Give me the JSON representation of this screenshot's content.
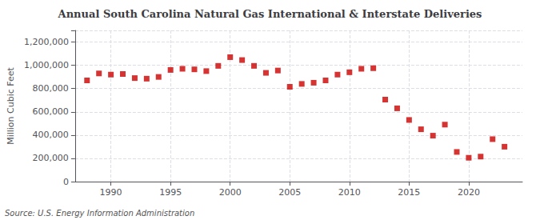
{
  "chart_data": {
    "type": "scatter",
    "title": "Annual South Carolina Natural Gas International & Interstate Deliveries",
    "ylabel": "Million Cubic Feet",
    "annotations": [
      "Source: U.S. Energy Information Administration"
    ],
    "x": [
      1988,
      1989,
      1990,
      1991,
      1992,
      1993,
      1994,
      1995,
      1996,
      1997,
      1998,
      1999,
      2000,
      2001,
      2002,
      2003,
      2004,
      2005,
      2006,
      2007,
      2008,
      2009,
      2010,
      2011,
      2012,
      2013,
      2014,
      2015,
      2016,
      2017,
      2018,
      2019,
      2020,
      2021,
      2022,
      2023
    ],
    "values": [
      870000,
      930000,
      920000,
      925000,
      890000,
      885000,
      900000,
      960000,
      970000,
      965000,
      950000,
      995000,
      1070000,
      1045000,
      995000,
      935000,
      955000,
      815000,
      840000,
      850000,
      870000,
      920000,
      940000,
      970000,
      975000,
      705000,
      630000,
      530000,
      450000,
      395000,
      490000,
      255000,
      205000,
      215000,
      365000,
      300000
    ],
    "color": "#cc0000",
    "marker": "square",
    "xlim": [
      1987,
      2024.5
    ],
    "xticks": [
      1990,
      1995,
      2000,
      2005,
      2010,
      2015,
      2020
    ],
    "ylim": [
      0,
      1300000
    ],
    "yticks": [
      0,
      {
        "value": 200000,
        "label": "200,000"
      },
      {
        "value": 400000,
        "label": "400,000"
      },
      {
        "value": 600000,
        "label": "600,000"
      },
      {
        "value": 800000,
        "label": "800,000"
      },
      {
        "value": 1000000,
        "label": "1,000,000"
      },
      {
        "value": 1200000,
        "label": "1,200,000"
      }
    ],
    "grid": true
  }
}
